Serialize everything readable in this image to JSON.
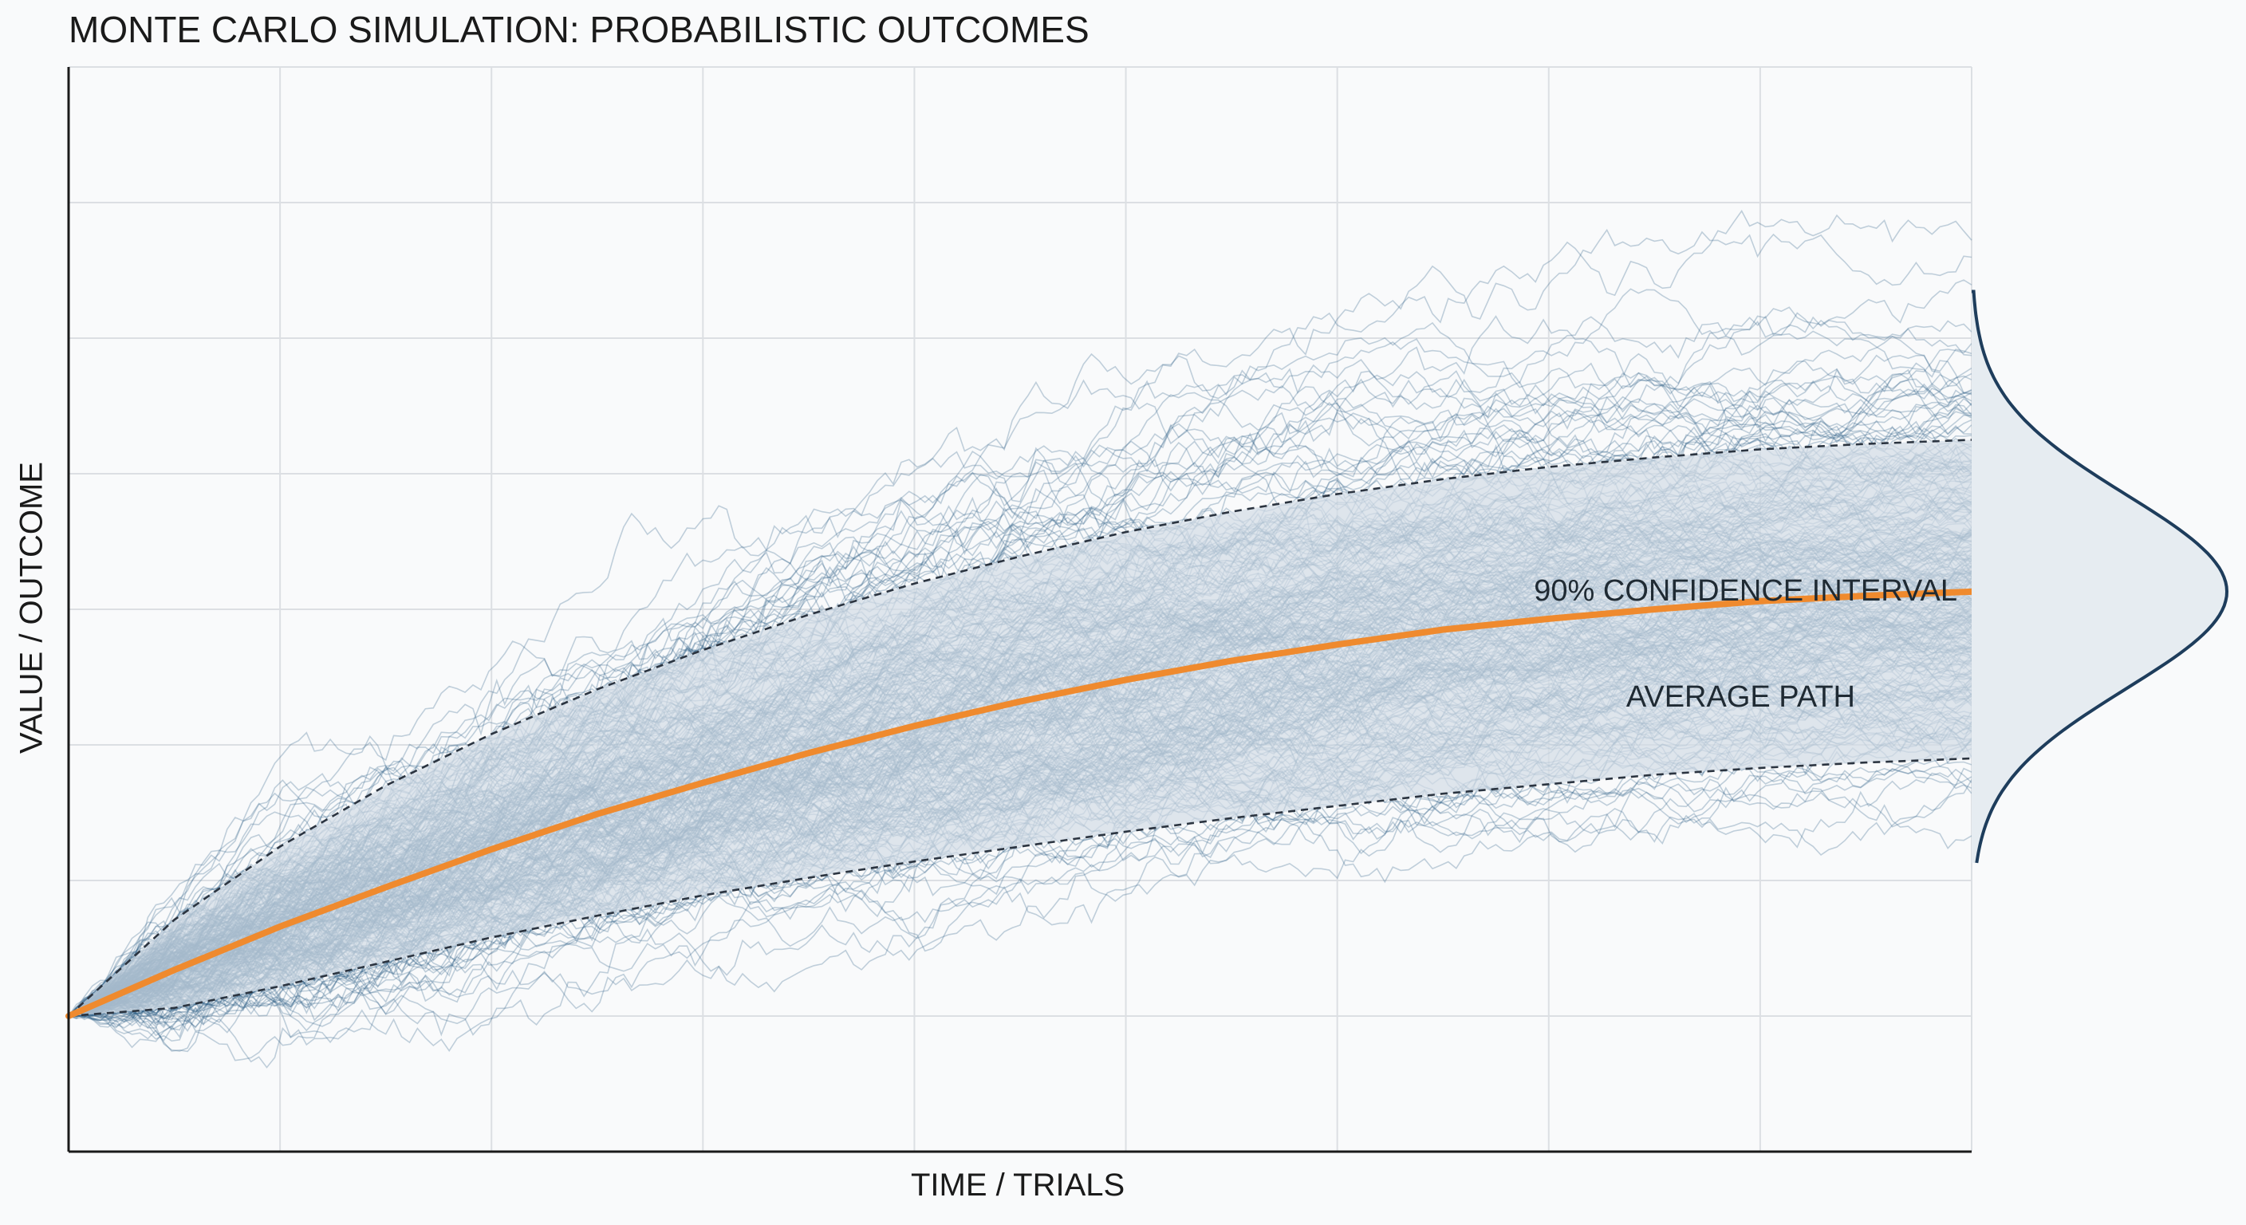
{
  "chart_data": {
    "type": "line",
    "title": "MONTE CARLO SIMULATION: PROBABILISTIC OUTCOMES",
    "xlabel": "TIME / TRIALS",
    "ylabel": "VALUE / OUTCOME",
    "xlim": [
      0,
      9
    ],
    "ylim": [
      -1,
      7
    ],
    "grid": true,
    "annotations": [
      "90% CONFIDENCE INTERVAL",
      "AVERAGE PATH"
    ],
    "series": [
      {
        "x": [
          0,
          0.5,
          1,
          1.5,
          2,
          2.5,
          3,
          3.5,
          4,
          4.5,
          5,
          5.5,
          6,
          6.5,
          7,
          7.5,
          8,
          8.5,
          9
        ],
        "values": [
          0,
          0.34,
          0.66,
          0.95,
          1.23,
          1.49,
          1.72,
          1.94,
          2.14,
          2.32,
          2.48,
          2.62,
          2.74,
          2.85,
          2.93,
          3.0,
          3.06,
          3.1,
          3.13
        ]
      },
      {
        "x": [
          0,
          0.5,
          1,
          1.5,
          2,
          2.5,
          3,
          3.5,
          4,
          4.5,
          5,
          5.5,
          6,
          6.5,
          7,
          7.5,
          8,
          8.5,
          9
        ],
        "values": [
          0,
          0.71,
          1.25,
          1.7,
          2.08,
          2.41,
          2.7,
          2.96,
          3.19,
          3.39,
          3.57,
          3.72,
          3.85,
          3.96,
          4.05,
          4.12,
          4.18,
          4.22,
          4.25
        ]
      },
      {
        "x": [
          0,
          0.5,
          1,
          1.5,
          2,
          2.5,
          3,
          3.5,
          4,
          4.5,
          5,
          5.5,
          6,
          6.5,
          7,
          7.5,
          8,
          8.5,
          9
        ],
        "values": [
          0,
          0.06,
          0.22,
          0.4,
          0.58,
          0.74,
          0.89,
          1.02,
          1.14,
          1.25,
          1.36,
          1.46,
          1.55,
          1.64,
          1.71,
          1.78,
          1.83,
          1.87,
          1.9
        ]
      }
    ],
    "colors": {
      "paths": "#2a5d86",
      "mean": "#ef8a2e",
      "band": "#d3dde6",
      "distribution": "#1e3d5c",
      "grid": "#dcdfe3",
      "axis": "#1a1a1a"
    }
  }
}
